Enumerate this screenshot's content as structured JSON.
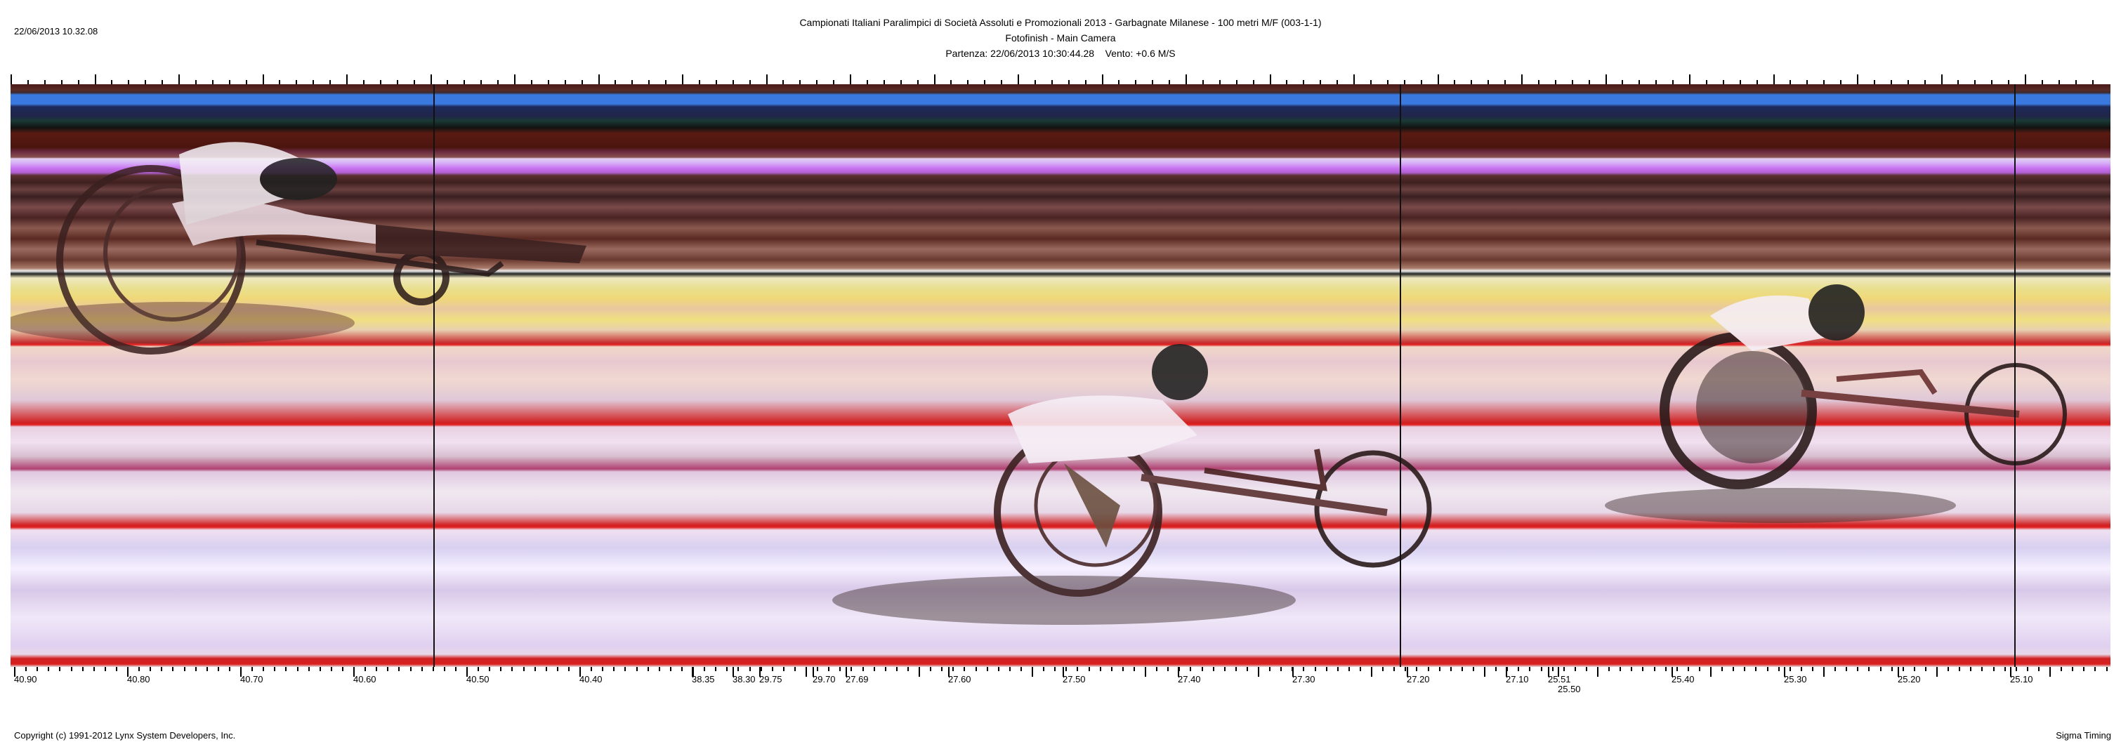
{
  "header": {
    "print_datetime": "22/06/2013 10.32.08",
    "title": "Campionati Italiani Paralimpici di Società Assoluti e Promozionali 2013 - Garbagnate Milanese - 100 metri M/F (003-1-1)",
    "subtitle": "Fotofinish - Main Camera",
    "start_info": "Partenza: 22/06/2013 10:30:44.28    Vento: +0.6 M/S"
  },
  "time_scale": {
    "labels": [
      "40.90",
      "40.80",
      "40.70",
      "40.60",
      "40.50",
      "40.40",
      "38.35",
      "38.30",
      "29.75",
      "29.70",
      "27.69",
      "27.60",
      "27.50",
      "27.40",
      "27.30",
      "27.20",
      "27.10",
      "25.51",
      "25.50",
      "25.40",
      "25.30",
      "25.20",
      "25.10"
    ]
  },
  "footer": {
    "copyright": "Copyright (c) 1991-2012 Lynx System Developers, Inc.",
    "brand": "Sigma Timing"
  },
  "colors": {
    "lane_line": "#e02020",
    "cursor_line": "#111111"
  }
}
